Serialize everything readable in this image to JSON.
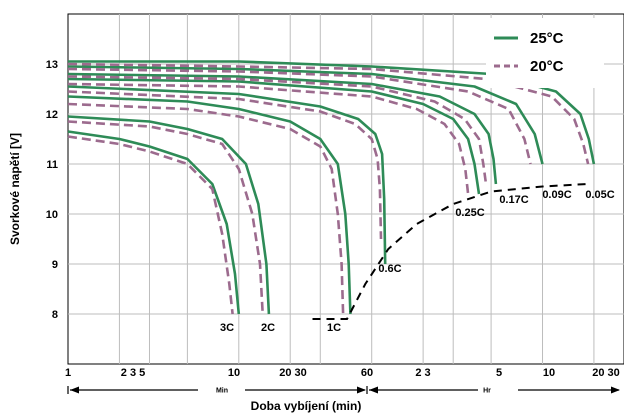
{
  "chart_data": {
    "type": "line",
    "title": "",
    "ylabel": "Svorkové napětí [V]",
    "xlabel": "Doba vybíjení (min)",
    "xscale": "log",
    "xlim": [
      1,
      1800
    ],
    "ylim": [
      7,
      14
    ],
    "grid": true,
    "legend": {
      "position": "top-right",
      "entries": [
        {
          "name": "25°C",
          "color": "#2e8b57",
          "style": "solid"
        },
        {
          "name": "20°C",
          "color": "#9c6b8e",
          "style": "dashed"
        }
      ]
    },
    "y_ticks": [
      8,
      9,
      10,
      11,
      12,
      13
    ],
    "x_tick_labels": [
      "1",
      "2 3 5",
      "10",
      "20 30",
      "60",
      "2 3",
      "5",
      "10",
      "20 30"
    ],
    "x_units": {
      "min_label": "Min",
      "hr_label": "Hr"
    },
    "rate_labels": [
      "3C",
      "2C",
      "1C",
      "0.6C",
      "0.25C",
      "0.17C",
      "0.09C",
      "0.05C"
    ],
    "series": [
      {
        "name": "3C",
        "temp": "25°C",
        "x": [
          1,
          2,
          3,
          5,
          7,
          8.5,
          9.5,
          10
        ],
        "y": [
          11.65,
          11.5,
          11.35,
          11.1,
          10.6,
          9.8,
          8.8,
          8
        ]
      },
      {
        "name": "3C",
        "temp": "20°C",
        "x": [
          1,
          2,
          3,
          5,
          7,
          8,
          8.8,
          9.2
        ],
        "y": [
          11.55,
          11.4,
          11.25,
          11.0,
          10.5,
          9.6,
          8.6,
          8
        ]
      },
      {
        "name": "2C",
        "temp": "25°C",
        "x": [
          1,
          3,
          5,
          8,
          11,
          13,
          14.5,
          15
        ],
        "y": [
          11.95,
          11.85,
          11.7,
          11.5,
          11.0,
          10.2,
          9.0,
          8
        ]
      },
      {
        "name": "2C",
        "temp": "20°C",
        "x": [
          1,
          3,
          5,
          8,
          10,
          12,
          13.3,
          13.8
        ],
        "y": [
          11.85,
          11.75,
          11.6,
          11.4,
          10.9,
          10.0,
          9.0,
          8
        ]
      },
      {
        "name": "1C",
        "temp": "25°C",
        "x": [
          1,
          5,
          10,
          20,
          30,
          38,
          42,
          44,
          45
        ],
        "y": [
          12.35,
          12.25,
          12.1,
          11.85,
          11.5,
          11.0,
          10.0,
          9.0,
          8
        ]
      },
      {
        "name": "1C",
        "temp": "20°C",
        "x": [
          1,
          5,
          10,
          20,
          30,
          35,
          38,
          40,
          40.8
        ],
        "y": [
          12.2,
          12.1,
          11.95,
          11.7,
          11.35,
          10.9,
          10.0,
          9.0,
          8
        ]
      },
      {
        "name": "0.6C",
        "temp": "25°C",
        "x": [
          1,
          10,
          30,
          50,
          63,
          69,
          71,
          72
        ],
        "y": [
          12.55,
          12.4,
          12.15,
          11.9,
          11.6,
          11.2,
          10.3,
          9.0
        ]
      },
      {
        "name": "0.6C",
        "temp": "20°C",
        "x": [
          1,
          10,
          30,
          48,
          60,
          65,
          67,
          68
        ],
        "y": [
          12.45,
          12.3,
          12.05,
          11.8,
          11.5,
          11.1,
          10.5,
          9.5
        ]
      },
      {
        "name": "0.25C",
        "temp": "25°C",
        "x": [
          1,
          10,
          60,
          120,
          180,
          220,
          240,
          255
        ],
        "y": [
          12.7,
          12.65,
          12.45,
          12.2,
          11.9,
          11.5,
          11.0,
          10.4
        ]
      },
      {
        "name": "0.25C",
        "temp": "20°C",
        "x": [
          1,
          10,
          60,
          110,
          160,
          195,
          212,
          220
        ],
        "y": [
          12.6,
          12.55,
          12.35,
          12.1,
          11.8,
          11.4,
          10.9,
          10.4
        ]
      },
      {
        "name": "0.17C",
        "temp": "25°C",
        "x": [
          1,
          10,
          60,
          150,
          240,
          290,
          310,
          320
        ],
        "y": [
          12.8,
          12.75,
          12.6,
          12.35,
          12.0,
          11.6,
          11.1,
          10.6
        ]
      },
      {
        "name": "0.17C",
        "temp": "20°C",
        "x": [
          1,
          10,
          60,
          140,
          210,
          255,
          270,
          280
        ],
        "y": [
          12.75,
          12.7,
          12.55,
          12.25,
          11.9,
          11.5,
          11.0,
          10.6
        ]
      },
      {
        "name": "0.09C",
        "temp": "25°C",
        "x": [
          1,
          10,
          60,
          240,
          420,
          540,
          600
        ],
        "y": [
          12.95,
          12.9,
          12.8,
          12.55,
          12.2,
          11.6,
          11.0
        ]
      },
      {
        "name": "0.09C",
        "temp": "20°C",
        "x": [
          1,
          10,
          60,
          220,
          380,
          470,
          510
        ],
        "y": [
          12.9,
          12.85,
          12.75,
          12.45,
          12.1,
          11.5,
          11.0
        ]
      },
      {
        "name": "0.05C",
        "temp": "25°C",
        "x": [
          1,
          10,
          60,
          300,
          720,
          1000,
          1120,
          1200
        ],
        "y": [
          13.05,
          13.05,
          12.95,
          12.8,
          12.45,
          12.0,
          11.5,
          11.0
        ]
      },
      {
        "name": "0.05C",
        "temp": "20°C",
        "x": [
          1,
          10,
          60,
          280,
          680,
          920,
          1040,
          1110
        ],
        "y": [
          13.0,
          12.95,
          12.9,
          12.7,
          12.35,
          11.9,
          11.4,
          11.0
        ]
      }
    ],
    "cutoff_curve": {
      "x": [
        27,
        33,
        43,
        55,
        75,
        110,
        180,
        300,
        600,
        1100
      ],
      "y": [
        7.9,
        7.9,
        7.9,
        8.6,
        9.3,
        9.8,
        10.2,
        10.45,
        10.55,
        10.6
      ]
    }
  }
}
